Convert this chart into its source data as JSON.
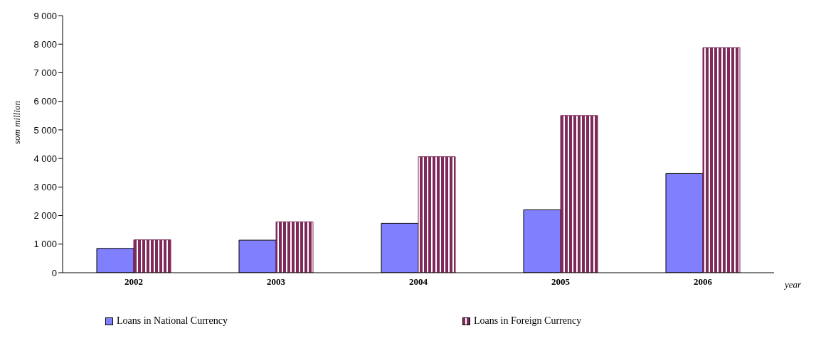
{
  "chart_data": {
    "type": "bar",
    "categories": [
      "2002",
      "2003",
      "2004",
      "2005",
      "2006"
    ],
    "xlabel": "year",
    "ylabel": "som million",
    "series": [
      {
        "name": "Loans in National Currency",
        "color": "#8080ff",
        "values": [
          850,
          1140,
          1730,
          2200,
          3470
        ]
      },
      {
        "name": "Loans in Foreign Currency",
        "color": "#7f2a5a",
        "values": [
          1150,
          1780,
          4060,
          5500,
          7880
        ]
      }
    ],
    "ylim": [
      0,
      9000
    ],
    "yticks": [
      0,
      {
        "value": 1000,
        "label": "1 000"
      },
      {
        "value": 2000,
        "label": "2 000"
      },
      {
        "value": 3000,
        "label": "3 000"
      },
      {
        "value": 4000,
        "label": "4 000"
      },
      {
        "value": 5000,
        "label": "5 000"
      },
      {
        "value": 6000,
        "label": "6 000"
      },
      {
        "value": 7000,
        "label": "7 000"
      },
      {
        "value": 8000,
        "label": "8 000"
      },
      {
        "value": 9000,
        "label": "9 000"
      }
    ],
    "grid": false,
    "legend": "bottom"
  }
}
